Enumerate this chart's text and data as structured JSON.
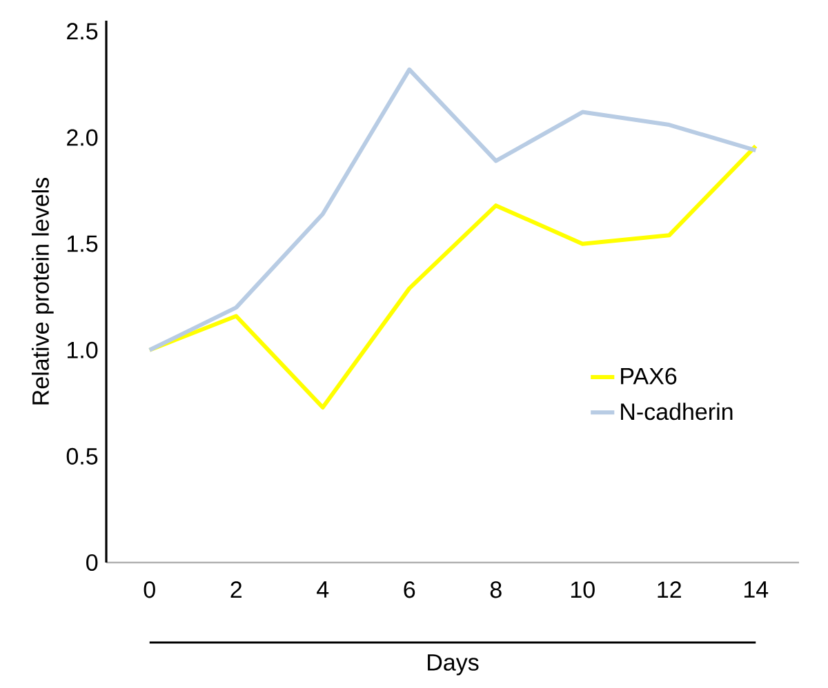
{
  "chart_data": {
    "type": "line",
    "xlabel": "Days",
    "ylabel": "Relative protein levels",
    "x": [
      0,
      2,
      4,
      6,
      8,
      10,
      12,
      14
    ],
    "series": [
      {
        "name": "PAX6",
        "color": "#ffff00",
        "values": [
          1.0,
          1.16,
          0.73,
          1.29,
          1.68,
          1.5,
          1.54,
          1.96
        ]
      },
      {
        "name": "N-cadherin",
        "color": "#b8cce4",
        "values": [
          1.0,
          1.2,
          1.64,
          2.32,
          1.89,
          2.12,
          2.06,
          1.94
        ]
      }
    ],
    "xlim": [
      -1,
      15
    ],
    "ylim": [
      0,
      2.55
    ],
    "xticks": [
      0,
      2,
      4,
      6,
      8,
      10,
      12,
      14
    ],
    "yticks": [
      0,
      0.5,
      {
        "value": 1.0,
        "label": "1.0"
      },
      {
        "value": 1.5,
        "label": "1.5"
      },
      {
        "value": 2.0,
        "label": "2.0"
      },
      {
        "value": 2.5,
        "label": "2.5"
      }
    ],
    "legend": "right",
    "grid": false,
    "marker": "none",
    "line_style": "solid"
  }
}
